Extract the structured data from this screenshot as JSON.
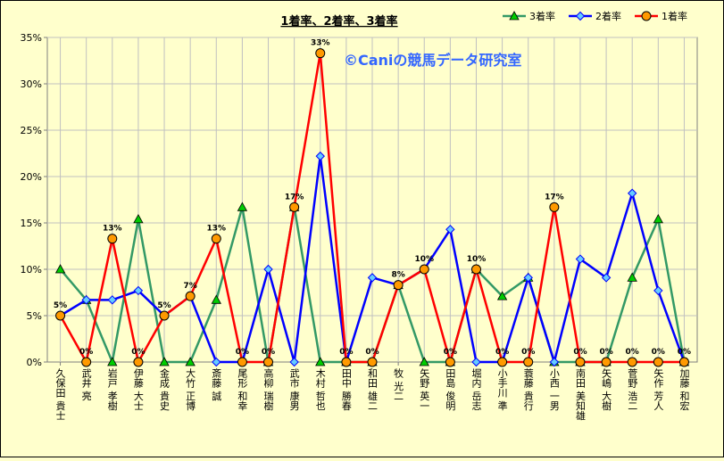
{
  "chart_data": {
    "type": "line",
    "title": "1着率、2着率、3着率",
    "watermark": "©Caniの競馬データ研究室",
    "xlabel": "",
    "ylabel": "",
    "ylim": [
      0,
      35
    ],
    "yticks": [
      "0%",
      "5%",
      "10%",
      "15%",
      "20%",
      "25%",
      "30%",
      "35%"
    ],
    "grid": true,
    "legend_position": "top-right",
    "categories": [
      "久保田 貴士",
      "武井 亮",
      "岩戸 孝樹",
      "伊藤 大士",
      "金成 貴史",
      "大竹 正博",
      "斎藤 誠",
      "尾形 和幸",
      "高柳 瑞樹",
      "武市 康男",
      "木村 哲也",
      "田中 勝春",
      "和田 雄二",
      "牧 光二",
      "矢野 英一",
      "田島 俊明",
      "堀内 岳志",
      "小手川 準",
      "蓑藤 貴行",
      "小西 一男",
      "南田 美知雄",
      "矢嶋 大樹",
      "菅野 浩二",
      "矢作 芳人",
      "加藤 和宏"
    ],
    "series": [
      {
        "name": "3着率",
        "color": "#339966",
        "marker": "triangle",
        "values": [
          10.0,
          6.7,
          0.0,
          15.4,
          0.0,
          0.0,
          6.7,
          16.7,
          0.0,
          16.7,
          0.0,
          0.0,
          0.0,
          8.3,
          0.0,
          0.0,
          10.0,
          7.1,
          9.1,
          0.0,
          0.0,
          0.0,
          9.1,
          15.4,
          0.0
        ]
      },
      {
        "name": "2着率",
        "color": "#0000ff",
        "marker": "diamond",
        "values": [
          5.0,
          6.7,
          6.7,
          7.7,
          5.0,
          7.1,
          0.0,
          0.0,
          10.0,
          0.0,
          22.2,
          0.0,
          9.1,
          8.3,
          10.0,
          14.3,
          0.0,
          0.0,
          9.1,
          0.0,
          11.1,
          9.1,
          18.2,
          7.7,
          0.0
        ]
      },
      {
        "name": "1着率",
        "color": "#ff0000",
        "marker": "circle",
        "values": [
          5.0,
          0.0,
          13.3,
          0.0,
          5.0,
          7.1,
          13.3,
          0.0,
          0.0,
          16.7,
          33.3,
          0.0,
          0.0,
          8.3,
          10.0,
          0.0,
          10.0,
          0.0,
          0.0,
          16.7,
          0.0,
          0.0,
          0.0,
          0.0,
          0.0
        ]
      }
    ],
    "data_labels_series": "1着率",
    "data_labels": [
      "5%",
      "0%",
      "13%",
      "0%",
      "5%",
      "7%",
      "13%",
      "0%",
      "0%",
      "17%",
      "33%",
      "0%",
      "0%",
      "8%",
      "10%",
      "0%",
      "10%",
      "0%",
      "0%",
      "17%",
      "0%",
      "0%",
      "0%",
      "0%",
      "0%"
    ]
  }
}
